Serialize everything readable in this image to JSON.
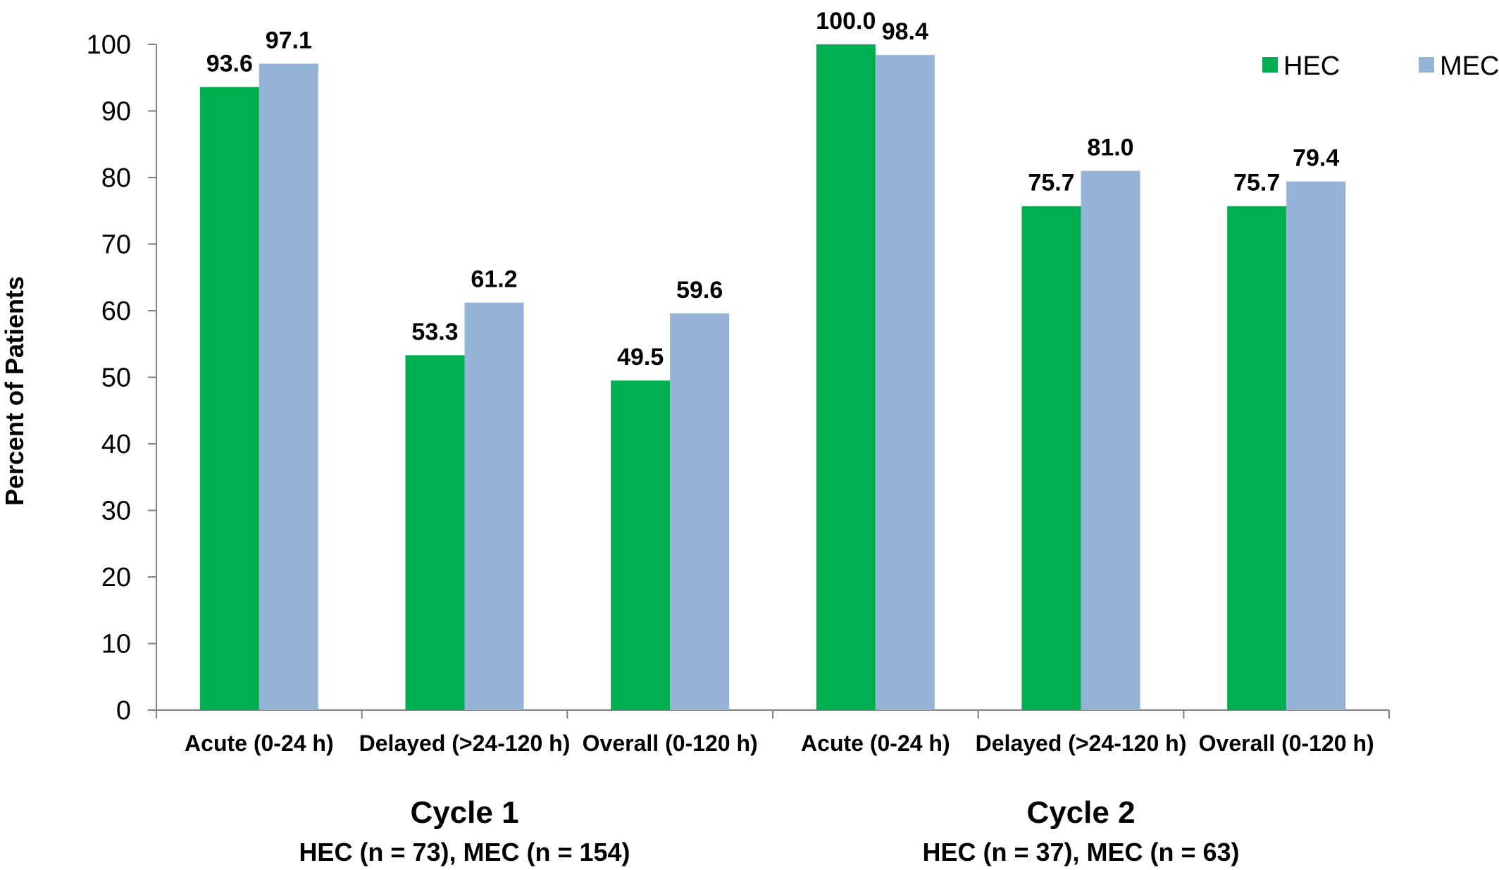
{
  "chart_data": {
    "type": "bar",
    "title": "",
    "ylabel": "Percent of Patients",
    "xlabel": "",
    "ylim": [
      0,
      100
    ],
    "yticks": [
      0,
      10,
      20,
      30,
      40,
      50,
      60,
      70,
      80,
      90,
      100
    ],
    "categories": [
      "Acute (0-24 h)",
      "Delayed (>24-120 h)",
      "Overall (0-120 h)",
      "Acute (0-24 h)",
      "Delayed (>24-120 h)",
      "Overall (0-120 h)"
    ],
    "series": [
      {
        "name": "HEC",
        "color": "#00b050",
        "values": [
          93.6,
          53.3,
          49.5,
          100.0,
          75.7,
          75.7
        ],
        "labels": [
          "93.6",
          "53.3",
          "49.5",
          "100.0",
          "75.7",
          "75.7"
        ]
      },
      {
        "name": "MEC",
        "color": "#95b3d7",
        "values": [
          97.1,
          61.2,
          59.6,
          98.4,
          81.0,
          79.4
        ],
        "labels": [
          "97.1",
          "61.2",
          "59.6",
          "98.4",
          "81.0",
          "79.4"
        ]
      }
    ],
    "groups": [
      {
        "title": "Cycle 1",
        "subtitle": "HEC (n = 73), MEC (n = 154)",
        "categories": [
          0,
          1,
          2
        ]
      },
      {
        "title": "Cycle 2",
        "subtitle": "HEC (n = 37), MEC (n = 63)",
        "categories": [
          3,
          4,
          5
        ]
      }
    ],
    "legend": {
      "position": "top-right",
      "entries": [
        "HEC",
        "MEC"
      ]
    },
    "grid": false
  }
}
